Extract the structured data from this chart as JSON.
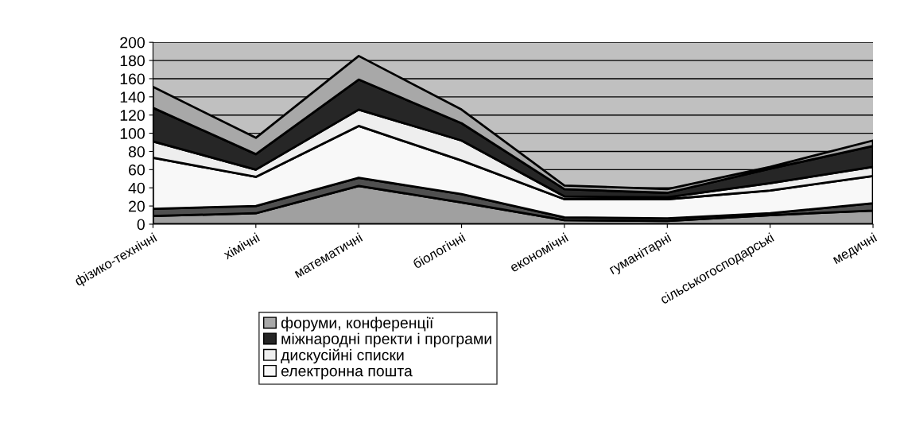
{
  "chart_data": {
    "type": "area",
    "stacked": true,
    "categories": [
      "фізико-технічні",
      "хімічні",
      "математичні",
      "біологічні",
      "економічні",
      "гуманітарні",
      "сільськогосподарські",
      "медичні"
    ],
    "series": [
      {
        "color": "#a0a0a0",
        "values": [
          9,
          12,
          42,
          24,
          4.5,
          3.5,
          10,
          15
        ]
      },
      {
        "color": "#505050",
        "values": [
          8,
          8,
          9,
          9,
          3,
          3,
          2,
          8
        ]
      },
      {
        "name": "електронна пошта",
        "color": "#f8f8f8",
        "values": [
          56,
          32,
          57,
          37,
          20,
          21,
          25,
          30
        ]
      },
      {
        "name": "дискусійні списки",
        "color": "#eeeeee",
        "values": [
          18,
          8,
          18,
          22,
          3,
          2,
          8,
          10
        ]
      },
      {
        "name": "міжнародні пректи і програми",
        "color": "#262626",
        "values": [
          37,
          17,
          33,
          19,
          8,
          5,
          16,
          23
        ]
      },
      {
        "name": "форуми, конференції",
        "color": "#a8a8a8",
        "values": [
          23,
          18,
          26,
          15,
          4,
          4,
          2,
          6
        ]
      }
    ],
    "ylim": [
      0,
      200
    ],
    "yticks": [
      0,
      20,
      40,
      60,
      80,
      100,
      120,
      140,
      160,
      180,
      200
    ],
    "grid": "y",
    "legend": "bottom"
  }
}
